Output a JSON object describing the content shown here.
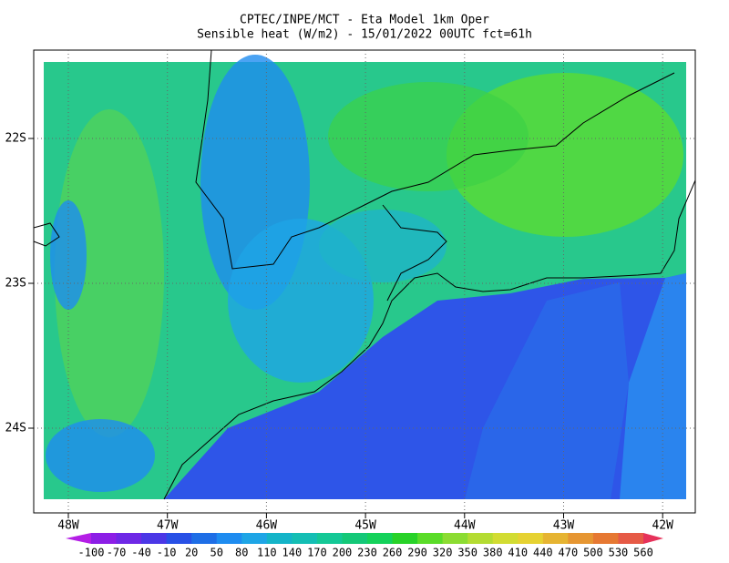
{
  "header": {
    "title": "CPTEC/INPE/MCT -  Eta Model 1km Oper",
    "subtitle": "Sensible heat (W/m2) - 15/01/2022 00UTC fct=61h"
  },
  "map": {
    "lat_labels": [
      "22S",
      "23S",
      "24S"
    ],
    "lon_labels": [
      "48W",
      "47W",
      "46W",
      "45W",
      "44W",
      "43W",
      "42W"
    ]
  },
  "colorbar": {
    "labels": [
      "-100",
      "-70",
      "-40",
      "-10",
      "20",
      "50",
      "80",
      "110",
      "140",
      "170",
      "200",
      "230",
      "260",
      "290",
      "320",
      "350",
      "380",
      "410",
      "440",
      "470",
      "500",
      "530",
      "560"
    ],
    "colors": [
      "#b41ee6",
      "#8c1ee6",
      "#6e28e6",
      "#4b37e6",
      "#2850e6",
      "#1e6ee6",
      "#1e8cf0",
      "#1ea5e6",
      "#14b4c8",
      "#14beb4",
      "#14c896",
      "#14c878",
      "#14d25a",
      "#28d228",
      "#5adc28",
      "#8cdc32",
      "#b4dc32",
      "#d2dc32",
      "#e6d232",
      "#e6b432",
      "#e69632",
      "#e67832",
      "#e65a46",
      "#e6325a"
    ]
  }
}
